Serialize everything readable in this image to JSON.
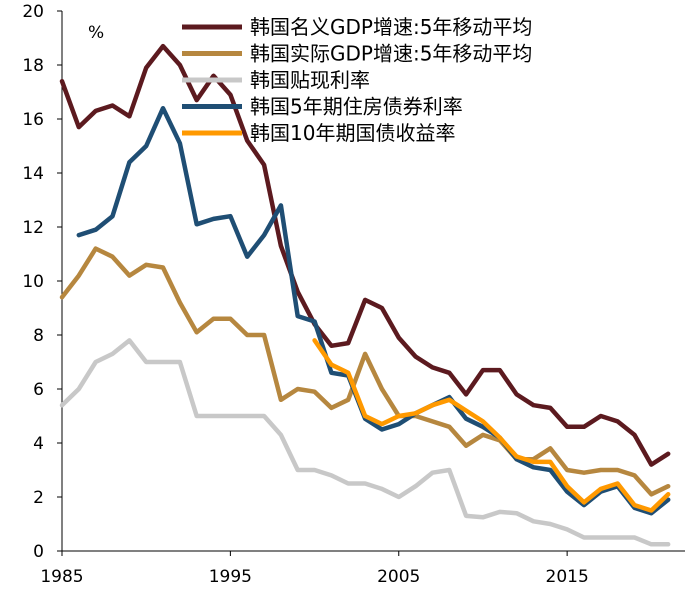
{
  "chart_data": {
    "type": "line",
    "title": "",
    "xlabel": "",
    "ylabel": "",
    "unit_label": "%",
    "xlim": [
      1985,
      2022
    ],
    "ylim": [
      0,
      20
    ],
    "y_ticks": [
      0,
      2,
      4,
      6,
      8,
      10,
      12,
      14,
      16,
      18,
      20
    ],
    "x_ticks": [
      1985,
      1995,
      2005,
      2015
    ],
    "legend_position": "top-right",
    "series": [
      {
        "name": "韩国名义GDP增速:5年移动平均",
        "color": "#5c1a1f",
        "x": [
          1985,
          1986,
          1987,
          1988,
          1989,
          1990,
          1991,
          1992,
          1993,
          1994,
          1995,
          1996,
          1997,
          1998,
          1999,
          2000,
          2001,
          2002,
          2003,
          2004,
          2005,
          2006,
          2007,
          2008,
          2009,
          2010,
          2011,
          2012,
          2013,
          2014,
          2015,
          2016,
          2017,
          2018,
          2019,
          2020,
          2021
        ],
        "values": [
          17.4,
          15.7,
          16.3,
          16.5,
          16.1,
          17.9,
          18.7,
          18.0,
          16.7,
          17.6,
          16.9,
          15.2,
          14.3,
          11.3,
          9.6,
          8.4,
          7.6,
          7.7,
          9.3,
          9.0,
          7.9,
          7.2,
          6.8,
          6.6,
          5.8,
          6.7,
          6.7,
          5.8,
          5.4,
          5.3,
          4.6,
          4.6,
          5.0,
          4.8,
          4.3,
          3.2,
          3.6
        ]
      },
      {
        "name": "韩国实际GDP增速:5年移动平均",
        "color": "#b6873f",
        "x": [
          1985,
          1986,
          1987,
          1988,
          1989,
          1990,
          1991,
          1992,
          1993,
          1994,
          1995,
          1996,
          1997,
          1998,
          1999,
          2000,
          2001,
          2002,
          2003,
          2004,
          2005,
          2006,
          2007,
          2008,
          2009,
          2010,
          2011,
          2012,
          2013,
          2014,
          2015,
          2016,
          2017,
          2018,
          2019,
          2020,
          2021
        ],
        "values": [
          9.4,
          10.2,
          11.2,
          10.9,
          10.2,
          10.6,
          10.5,
          9.2,
          8.1,
          8.6,
          8.6,
          8.0,
          8.0,
          5.6,
          6.0,
          5.9,
          5.3,
          5.6,
          7.3,
          6.0,
          5.0,
          5.0,
          4.8,
          4.6,
          3.9,
          4.3,
          4.1,
          3.4,
          3.4,
          3.8,
          3.0,
          2.9,
          3.0,
          3.0,
          2.8,
          2.1,
          2.4
        ]
      },
      {
        "name": "韩国贴现利率",
        "color": "#c8c8c8",
        "x": [
          1985,
          1986,
          1987,
          1988,
          1989,
          1990,
          1991,
          1992,
          1993,
          1994,
          1995,
          1996,
          1997,
          1998,
          1999,
          2000,
          2001,
          2002,
          2003,
          2004,
          2005,
          2006,
          2007,
          2008,
          2009,
          2010,
          2011,
          2012,
          2013,
          2014,
          2015,
          2016,
          2017,
          2018,
          2019,
          2020,
          2021
        ],
        "values": [
          5.4,
          6.0,
          7.0,
          7.3,
          7.8,
          7.0,
          7.0,
          7.0,
          5.0,
          5.0,
          5.0,
          5.0,
          5.0,
          4.3,
          3.0,
          3.0,
          2.8,
          2.5,
          2.5,
          2.3,
          2.0,
          2.4,
          2.9,
          3.0,
          1.3,
          1.25,
          1.45,
          1.4,
          1.1,
          1.0,
          0.8,
          0.5,
          0.5,
          0.5,
          0.5,
          0.25,
          0.25
        ]
      },
      {
        "name": "韩国5年期住房债券利率",
        "color": "#1f4e74",
        "x": [
          1986,
          1987,
          1988,
          1989,
          1990,
          1991,
          1992,
          1993,
          1994,
          1995,
          1996,
          1997,
          1998,
          1999,
          2000,
          2001,
          2002,
          2003,
          2004,
          2005,
          2006,
          2007,
          2008,
          2009,
          2010,
          2011,
          2012,
          2013,
          2014,
          2015,
          2016,
          2017,
          2018,
          2019,
          2020,
          2021
        ],
        "values": [
          11.7,
          11.9,
          12.4,
          14.4,
          15.0,
          16.4,
          15.1,
          12.1,
          12.3,
          12.4,
          10.9,
          11.7,
          12.8,
          8.7,
          8.5,
          6.6,
          6.5,
          4.9,
          4.5,
          4.7,
          5.1,
          5.4,
          5.7,
          4.9,
          4.6,
          4.2,
          3.4,
          3.1,
          3.0,
          2.2,
          1.7,
          2.2,
          2.4,
          1.6,
          1.4,
          1.9
        ]
      },
      {
        "name": "韩国10年期国债收益率",
        "color": "#ff9900",
        "x": [
          2000,
          2001,
          2002,
          2003,
          2004,
          2005,
          2006,
          2007,
          2008,
          2009,
          2010,
          2011,
          2012,
          2013,
          2014,
          2015,
          2016,
          2017,
          2018,
          2019,
          2020,
          2021
        ],
        "values": [
          7.8,
          6.9,
          6.6,
          5.0,
          4.7,
          5.0,
          5.1,
          5.4,
          5.6,
          5.2,
          4.8,
          4.2,
          3.5,
          3.3,
          3.3,
          2.4,
          1.8,
          2.3,
          2.5,
          1.7,
          1.5,
          2.1
        ]
      }
    ]
  }
}
